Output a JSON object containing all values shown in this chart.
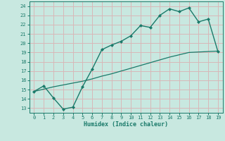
{
  "xlabel": "Humidex (Indice chaleur)",
  "bg_color": "#c8e8e0",
  "grid_color": "#d8b8b8",
  "line_color": "#1a7a6a",
  "line1_x": [
    0,
    1,
    2,
    3,
    4,
    5,
    6,
    7,
    8,
    9,
    10,
    11,
    12,
    13,
    14,
    15,
    16,
    17,
    18,
    19
  ],
  "line1_y": [
    14.8,
    15.4,
    14.1,
    12.9,
    13.1,
    15.3,
    17.2,
    19.3,
    19.8,
    20.2,
    20.8,
    21.9,
    21.7,
    23.0,
    23.7,
    23.4,
    23.8,
    22.3,
    22.6,
    19.1
  ],
  "line2_x": [
    0,
    1,
    2,
    3,
    4,
    5,
    6,
    7,
    8,
    9,
    10,
    11,
    12,
    13,
    14,
    15,
    16,
    17,
    18,
    19
  ],
  "line2_y": [
    14.8,
    15.05,
    15.3,
    15.5,
    15.7,
    15.9,
    16.15,
    16.45,
    16.7,
    17.0,
    17.3,
    17.6,
    17.9,
    18.2,
    18.5,
    18.75,
    19.0,
    19.05,
    19.1,
    19.15
  ],
  "xlim": [
    -0.5,
    19.5
  ],
  "ylim": [
    12.5,
    24.5
  ],
  "yticks": [
    13,
    14,
    15,
    16,
    17,
    18,
    19,
    20,
    21,
    22,
    23,
    24
  ],
  "xticks": [
    0,
    1,
    2,
    3,
    4,
    5,
    6,
    7,
    8,
    9,
    10,
    11,
    12,
    13,
    14,
    15,
    16,
    17,
    18,
    19
  ]
}
